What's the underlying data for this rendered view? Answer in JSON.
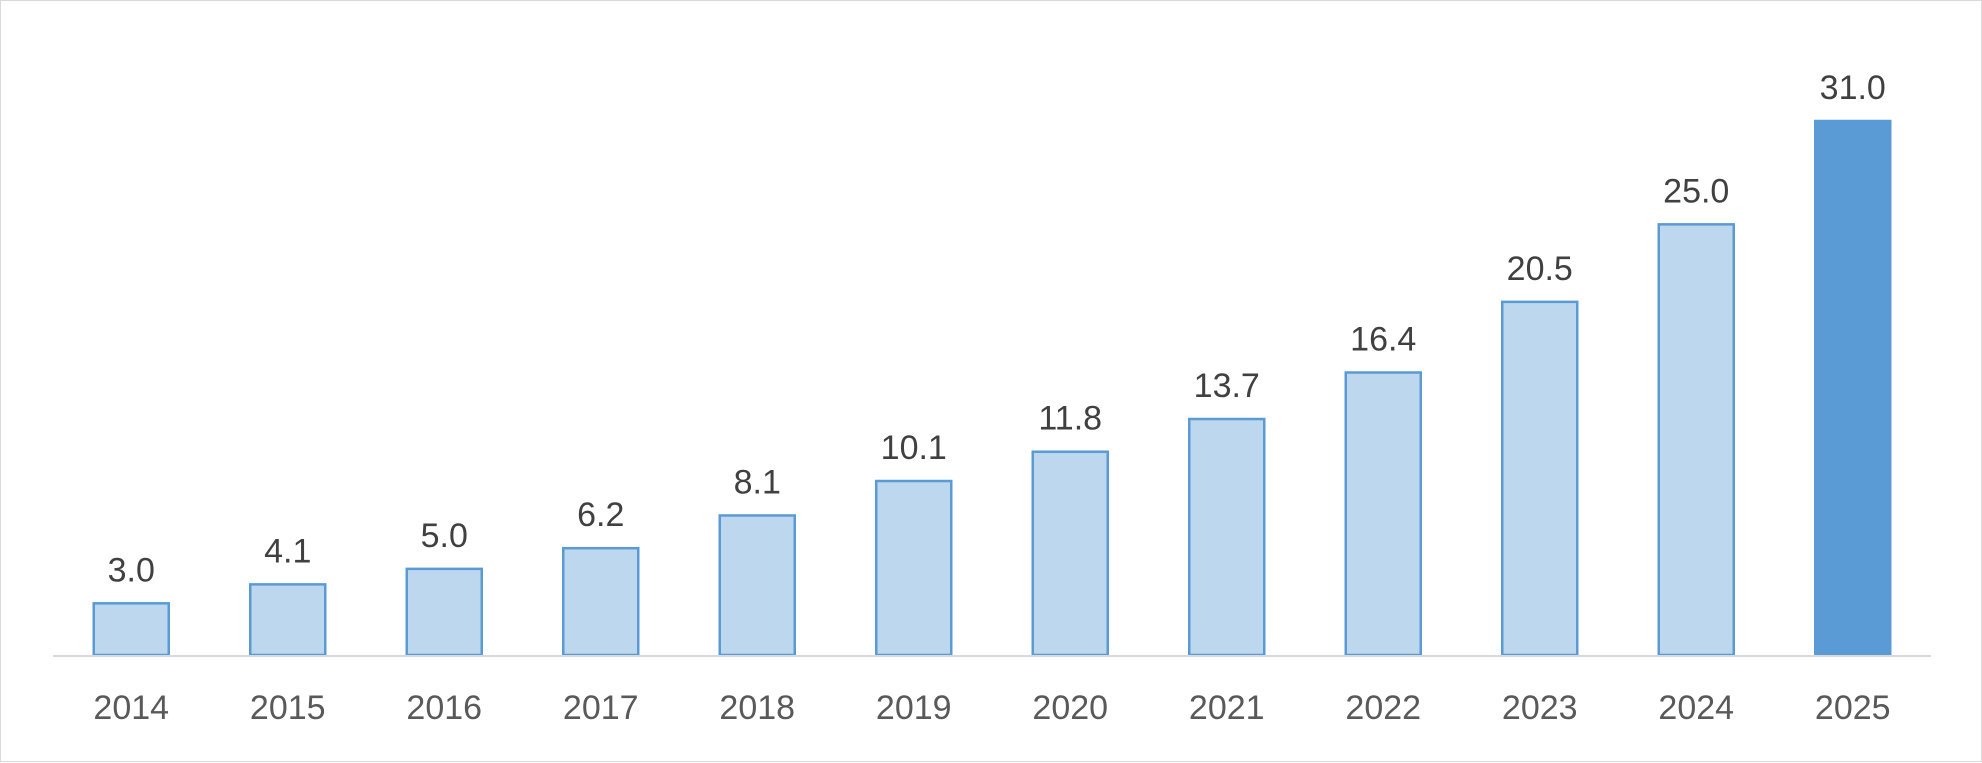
{
  "chart_data": {
    "type": "bar",
    "categories": [
      "2014",
      "2015",
      "2016",
      "2017",
      "2018",
      "2019",
      "2020",
      "2021",
      "2022",
      "2023",
      "2024",
      "2025"
    ],
    "values": [
      3.0,
      4.1,
      5.0,
      6.2,
      8.1,
      10.1,
      11.8,
      13.7,
      16.4,
      20.5,
      25.0,
      31.0
    ],
    "data_labels": [
      "3.0",
      "4.1",
      "5.0",
      "6.2",
      "8.1",
      "10.1",
      "11.8",
      "13.7",
      "16.4",
      "20.5",
      "25.0",
      "31.0"
    ],
    "highlight_index": 11,
    "ylim": [
      0,
      31.0
    ],
    "grid": false,
    "legend": "none",
    "colors": {
      "bar_fill": "#bdd7ee",
      "bar_stroke": "#5b9bd5",
      "highlight_fill": "#5b9bd5",
      "axis": "#d9d9d9",
      "frame": "#d9d9d9"
    }
  }
}
